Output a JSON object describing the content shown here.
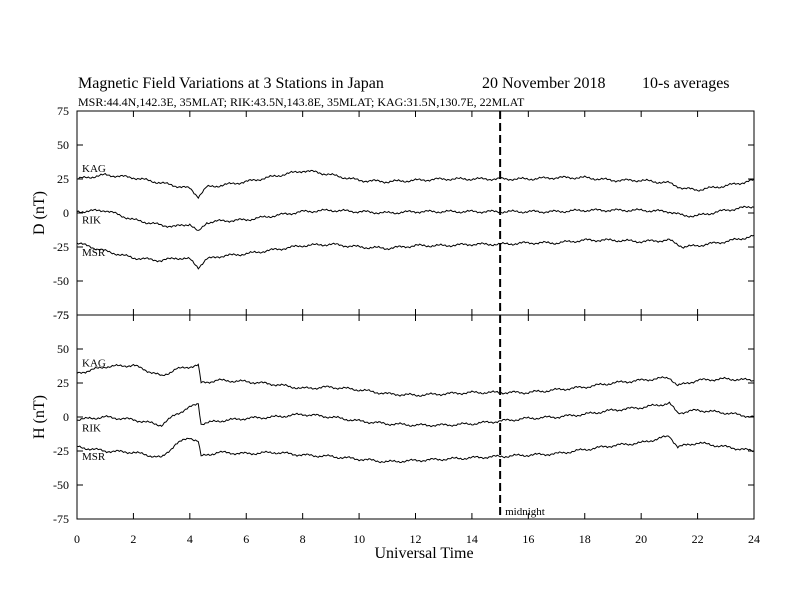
{
  "header": {
    "title": "Magnetic Field Variations at 3 Stations in Japan",
    "date": "20 November 2018",
    "averaging": "10-s averages",
    "stations": "MSR:44.4N,142.3E, 35MLAT;  RIK:43.5N,143.8E, 35MLAT;  KAG:31.5N,130.7E, 22MLAT"
  },
  "chart_data": [
    {
      "type": "line",
      "panel": "top",
      "ylabel": "D (nT)",
      "xlabel": "",
      "xlim": [
        0,
        24
      ],
      "ylim": [
        -75,
        75
      ],
      "yticks": [
        75,
        50,
        25,
        0,
        -25,
        -50,
        -75
      ],
      "xticks": [
        0,
        2,
        4,
        6,
        8,
        10,
        12,
        14,
        16,
        18,
        20,
        22,
        24
      ],
      "grid": false,
      "series": [
        {
          "name": "KAG",
          "x": [
            0,
            1,
            2,
            3,
            3.5,
            4,
            4.3,
            4.6,
            5,
            6,
            7,
            8,
            8.5,
            9,
            10,
            11,
            12,
            13,
            14,
            15,
            16,
            17,
            18,
            19,
            20,
            21,
            21.5,
            22,
            23,
            24
          ],
          "y": [
            25,
            28,
            26,
            22,
            20,
            18,
            12,
            19,
            20,
            23,
            27,
            31,
            30,
            28,
            24,
            23,
            24,
            25,
            25,
            25,
            25,
            26,
            26,
            24,
            24,
            22,
            18,
            17,
            20,
            24
          ]
        },
        {
          "name": "RIK",
          "x": [
            0,
            1,
            2,
            3,
            3.5,
            4,
            4.3,
            4.6,
            5,
            6,
            7,
            8,
            9,
            10,
            11,
            12,
            13,
            14,
            15,
            16,
            17,
            18,
            19,
            20,
            21,
            21.5,
            22,
            23,
            24
          ],
          "y": [
            1,
            2,
            -5,
            -9,
            -10,
            -8,
            -14,
            -7,
            -6,
            -5,
            -2,
            1,
            2,
            1,
            0,
            1,
            1,
            1,
            1,
            1,
            1,
            2,
            2,
            2,
            1,
            -2,
            -2,
            2,
            5
          ]
        },
        {
          "name": "MSR",
          "x": [
            0,
            1,
            2,
            3,
            3.5,
            4,
            4.3,
            4.6,
            5,
            6,
            7,
            8,
            9,
            10,
            11,
            12,
            13,
            14,
            15,
            16,
            17,
            18,
            19,
            20,
            21,
            21.5,
            22,
            23,
            24
          ],
          "y": [
            -22,
            -28,
            -33,
            -35,
            -33,
            -34,
            -40,
            -34,
            -32,
            -30,
            -27,
            -24,
            -23,
            -25,
            -26,
            -24,
            -24,
            -23,
            -23,
            -22,
            -22,
            -20,
            -20,
            -21,
            -20,
            -25,
            -24,
            -21,
            -17
          ]
        }
      ],
      "annotations": [
        {
          "text": "",
          "x": 15,
          "type": "vline"
        }
      ]
    },
    {
      "type": "line",
      "panel": "bottom",
      "ylabel": "H (nT)",
      "xlabel": "Universal Time",
      "xlim": [
        0,
        24
      ],
      "ylim": [
        -75,
        75
      ],
      "yticks": [
        75,
        50,
        25,
        0,
        -25,
        -50,
        -75
      ],
      "xticks": [
        0,
        2,
        4,
        6,
        8,
        10,
        12,
        14,
        16,
        18,
        20,
        22,
        24
      ],
      "grid": false,
      "series": [
        {
          "name": "KAG",
          "x": [
            0,
            1,
            2,
            2.5,
            3,
            3.5,
            4,
            4.3,
            4.4,
            5,
            6,
            7,
            8,
            9,
            10,
            11,
            12,
            13,
            14,
            15,
            16,
            17,
            18,
            19,
            20,
            21,
            21.3,
            22,
            23,
            24
          ],
          "y": [
            32,
            37,
            38,
            34,
            30,
            35,
            37,
            38,
            25,
            27,
            26,
            24,
            21,
            22,
            20,
            17,
            16,
            17,
            18,
            18,
            18,
            20,
            22,
            25,
            27,
            29,
            23,
            27,
            28,
            27
          ]
        },
        {
          "name": "RIK",
          "x": [
            0,
            1,
            2,
            2.5,
            3,
            3.5,
            4,
            4.3,
            4.4,
            5,
            6,
            7,
            8,
            9,
            10,
            11,
            12,
            13,
            14,
            15,
            16,
            17,
            18,
            19,
            20,
            21,
            21.3,
            22,
            23,
            24
          ],
          "y": [
            -2,
            0,
            -2,
            -4,
            -6,
            2,
            7,
            10,
            -5,
            -3,
            -1,
            0,
            2,
            0,
            -3,
            -5,
            -6,
            -6,
            -5,
            -3,
            -1,
            0,
            2,
            5,
            7,
            10,
            3,
            5,
            3,
            0
          ]
        },
        {
          "name": "MSR",
          "x": [
            0,
            1,
            2,
            2.5,
            3,
            3.5,
            4,
            4.3,
            4.4,
            5,
            6,
            7,
            8,
            9,
            10,
            11,
            12,
            13,
            14,
            15,
            16,
            17,
            18,
            19,
            20,
            21,
            21.3,
            22,
            23,
            24
          ],
          "y": [
            -22,
            -25,
            -26,
            -28,
            -30,
            -20,
            -15,
            -18,
            -29,
            -26,
            -27,
            -26,
            -28,
            -29,
            -31,
            -33,
            -32,
            -31,
            -30,
            -29,
            -28,
            -27,
            -24,
            -21,
            -19,
            -14,
            -22,
            -19,
            -22,
            -25
          ]
        }
      ],
      "annotations": [
        {
          "text": "midnight",
          "x": 15,
          "type": "vline"
        }
      ]
    }
  ]
}
